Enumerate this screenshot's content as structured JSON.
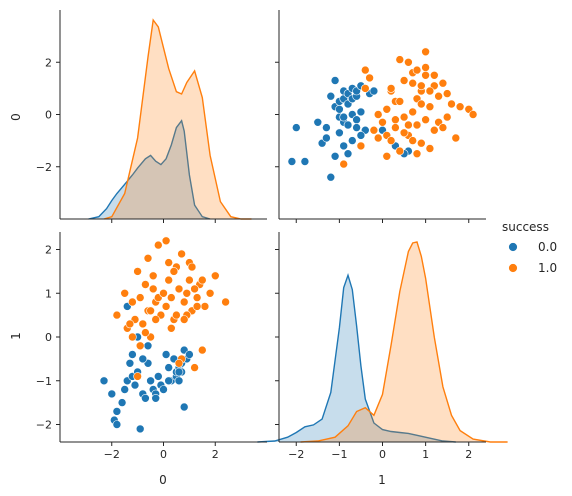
{
  "chart_data": {
    "type": "pairplot",
    "variables": [
      "0",
      "1"
    ],
    "hue": "success",
    "legend": {
      "title": "success",
      "position": "right-center",
      "entries": [
        {
          "label": "0.0",
          "color": "#1f77b4"
        },
        {
          "label": "1.0",
          "color": "#ff7f0e"
        }
      ]
    },
    "axes": {
      "var0": {
        "label": "0",
        "range": [
          -4.0,
          4.0
        ],
        "ticks": [
          -2,
          0,
          2
        ],
        "tick_labels": [
          "−2",
          "0",
          "2"
        ]
      },
      "var1": {
        "label": "1",
        "range": [
          -2.4,
          2.4
        ],
        "ticks": [
          -2,
          -1,
          0,
          1,
          2
        ],
        "tick_labels": [
          "−2",
          "−1",
          "0",
          "1",
          "2"
        ]
      }
    },
    "grid": false,
    "panels": [
      {
        "position": "top-left",
        "type": "kde",
        "variable": "0",
        "series": [
          {
            "name": "0.0",
            "color": "#1f77b4",
            "x": [
              -2.9,
              -2.5,
              -2.2,
              -2.0,
              -1.8,
              -1.5,
              -1.2,
              -1.0,
              -0.7,
              -0.5,
              -0.3,
              -0.1,
              0.1,
              0.3,
              0.5,
              0.7,
              0.8,
              1.0,
              1.2,
              1.5,
              1.8
            ],
            "density": [
              0.0,
              0.02,
              0.09,
              0.16,
              0.22,
              0.3,
              0.38,
              0.44,
              0.52,
              0.55,
              0.5,
              0.47,
              0.52,
              0.64,
              0.79,
              0.85,
              0.76,
              0.38,
              0.12,
              0.02,
              0.0
            ]
          },
          {
            "name": "1.0",
            "color": "#ff7f0e",
            "x": [
              -2.3,
              -2.0,
              -1.5,
              -1.0,
              -0.6,
              -0.4,
              -0.2,
              0.0,
              0.2,
              0.5,
              0.7,
              0.9,
              1.2,
              1.5,
              1.8,
              2.2,
              2.6,
              3.0,
              3.4
            ],
            "density": [
              0.0,
              0.02,
              0.22,
              0.7,
              1.4,
              1.72,
              1.66,
              1.48,
              1.3,
              1.1,
              1.08,
              1.18,
              1.28,
              1.05,
              0.55,
              0.15,
              0.02,
              0.0,
              0.0
            ]
          }
        ]
      },
      {
        "position": "top-right",
        "type": "scatter",
        "x_variable": "1",
        "y_variable": "0",
        "series": [
          {
            "name": "0.0",
            "color": "#1f77b4",
            "x": [
              -2.1,
              -2.0,
              -1.8,
              -1.5,
              -1.4,
              -1.3,
              -1.2,
              -1.1,
              -1.0,
              -0.9,
              -0.9,
              -0.8,
              -0.8,
              -0.7,
              -0.7,
              -0.6,
              -0.6,
              -0.5,
              -1.0,
              -0.9,
              -0.8,
              -0.7,
              -0.9,
              -1.0,
              -0.6,
              -0.5,
              -1.1,
              -1.2,
              -0.7,
              -0.4,
              -0.3,
              -0.2,
              0.3,
              0.6,
              -1.1,
              -1.3,
              -0.8,
              -0.5,
              0.0,
              0.5,
              0.7,
              -1.0,
              -0.6,
              -0.9
            ],
            "y": [
              -1.8,
              -0.5,
              -1.8,
              -0.3,
              -1.1,
              -0.5,
              0.7,
              0.3,
              0.5,
              0.6,
              0.9,
              0.8,
              0.4,
              0.6,
              1.0,
              0.7,
              0.9,
              1.1,
              -0.1,
              -0.3,
              -0.4,
              0.0,
              -1.2,
              -0.7,
              -0.2,
              0.1,
              -1.6,
              -2.4,
              -1.0,
              -0.6,
              0.8,
              0.9,
              -1.2,
              -1.4,
              1.3,
              -0.9,
              -1.5,
              -0.8,
              -0.6,
              -1.5,
              -1.0,
              0.2,
              -0.5,
              -0.1
            ]
          },
          {
            "name": "1.0",
            "color": "#ff7f0e",
            "x": [
              -0.9,
              -0.5,
              -0.4,
              -0.3,
              -0.2,
              -0.1,
              0.0,
              0.1,
              0.1,
              0.2,
              0.3,
              0.3,
              0.4,
              0.5,
              0.5,
              0.6,
              0.7,
              0.7,
              0.8,
              0.8,
              0.9,
              0.9,
              1.0,
              1.0,
              1.1,
              1.2,
              1.3,
              1.4,
              1.5,
              1.6,
              1.7,
              1.8,
              2.0,
              2.1,
              0.4,
              0.6,
              0.8,
              1.0,
              1.2,
              0.2,
              0.5,
              0.7,
              0.9,
              1.1,
              1.3,
              1.5,
              0.3,
              0.6,
              0.9,
              1.2,
              -0.1,
              0.1,
              0.4,
              0.7,
              1.0,
              1.4,
              0.8,
              1.1,
              -0.4,
              0.2
            ],
            "y": [
              -1.9,
              -1.2,
              1.0,
              1.4,
              -0.6,
              0.0,
              -0.3,
              -0.8,
              0.2,
              -1.0,
              -0.5,
              0.5,
              -1.4,
              -0.1,
              1.3,
              -0.8,
              0.1,
              1.6,
              -0.4,
              0.6,
              -1.1,
              0.9,
              -0.2,
              1.8,
              0.3,
              -0.6,
              0.7,
              1.2,
              -0.1,
              0.4,
              -0.9,
              0.3,
              0.2,
              0.0,
              2.1,
              2.0,
              1.7,
              1.5,
              1.1,
              0.9,
              -0.7,
              1.2,
              0.4,
              -1.3,
              -0.3,
              0.8,
              -0.2,
              -0.4,
              1.1,
              1.5,
              -0.9,
              -1.6,
              0.5,
              -1.0,
              2.4,
              -0.5,
              -1.5,
              0.9,
              1.7,
              1.0
            ]
          }
        ]
      },
      {
        "position": "bottom-left",
        "type": "scatter",
        "x_variable": "0",
        "y_variable": "1",
        "series": [
          {
            "name": "0.0",
            "color": "#1f77b4",
            "x": [
              -2.3,
              -2.0,
              -1.9,
              -1.8,
              -1.8,
              -1.6,
              -1.5,
              -1.4,
              -1.3,
              -1.2,
              -1.1,
              -1.0,
              -0.9,
              -0.8,
              -0.7,
              -0.6,
              -0.5,
              -0.4,
              -0.3,
              -0.2,
              -0.1,
              0.0,
              0.1,
              0.2,
              0.3,
              0.4,
              0.5,
              0.5,
              0.6,
              0.6,
              0.7,
              0.7,
              0.8,
              0.8,
              0.9,
              1.0,
              -1.4,
              -1.0,
              -0.6,
              -0.3,
              0.2,
              0.6,
              -0.8,
              -1.2
            ],
            "y": [
              -1.0,
              -1.3,
              -1.9,
              -2.0,
              -1.7,
              -1.5,
              -1.2,
              -1.0,
              -0.6,
              -0.9,
              -1.1,
              -0.8,
              -2.1,
              -1.3,
              -1.4,
              -0.6,
              -1.0,
              -1.2,
              -1.3,
              -0.9,
              -1.1,
              -1.2,
              -0.4,
              -0.7,
              -1.0,
              -0.5,
              -0.9,
              -0.8,
              -0.7,
              -1.0,
              -0.6,
              -0.8,
              -0.3,
              -1.6,
              -0.5,
              -0.4,
              0.7,
              0.0,
              -0.2,
              -1.4,
              -1.0,
              -0.8,
              -0.5,
              -0.4
            ]
          },
          {
            "name": "1.0",
            "color": "#ff7f0e",
            "x": [
              -1.8,
              -1.5,
              -1.4,
              -1.2,
              -1.1,
              -1.0,
              -0.9,
              -0.8,
              -0.7,
              -0.6,
              -0.5,
              -0.4,
              -0.3,
              -0.2,
              -0.1,
              0.0,
              0.1,
              0.2,
              0.3,
              0.4,
              0.5,
              0.6,
              0.7,
              0.8,
              0.9,
              1.0,
              1.1,
              1.2,
              1.3,
              1.4,
              1.5,
              1.6,
              1.8,
              2.0,
              2.4,
              -1.3,
              -0.9,
              -0.5,
              -0.2,
              0.1,
              0.4,
              0.7,
              1.0,
              1.3,
              -1.0,
              -0.6,
              -0.3,
              0.0,
              0.3,
              0.6,
              0.9,
              1.2,
              1.5,
              -0.7,
              -0.4,
              0.2,
              0.5,
              1.1,
              -1.2,
              0.8
            ],
            "y": [
              0.5,
              1.0,
              0.2,
              0.8,
              0.4,
              1.5,
              0.9,
              0.3,
              1.2,
              0.6,
              0.0,
              1.4,
              0.8,
              2.1,
              0.5,
              1.0,
              0.7,
              1.3,
              0.9,
              0.4,
              1.6,
              1.1,
              -0.5,
              0.8,
              1.0,
              1.3,
              0.6,
              -0.7,
              0.9,
              1.2,
              -0.3,
              0.7,
              1.0,
              1.4,
              0.8,
              0.3,
              -0.2,
              0.6,
              0.9,
              2.2,
              1.5,
              1.9,
              1.7,
              0.7,
              -0.9,
              1.8,
              0.4,
              1.0,
              0.2,
              -0.6,
              0.5,
              1.1,
              1.3,
              0.1,
              1.1,
              1.7,
              0.5,
              1.6,
              0.0,
              0.4
            ]
          }
        ]
      },
      {
        "position": "bottom-right",
        "type": "kde",
        "variable": "1",
        "series": [
          {
            "name": "0.0",
            "color": "#1f77b4",
            "x": [
              -2.9,
              -2.5,
              -2.2,
              -2.0,
              -1.8,
              -1.6,
              -1.4,
              -1.2,
              -1.0,
              -0.9,
              -0.8,
              -0.7,
              -0.6,
              -0.5,
              -0.4,
              -0.2,
              0.0,
              0.2,
              0.4,
              0.6,
              0.8,
              1.1,
              1.4,
              1.7
            ],
            "density": [
              0.0,
              0.01,
              0.05,
              0.1,
              0.16,
              0.18,
              0.24,
              0.52,
              1.2,
              1.62,
              1.75,
              1.6,
              1.22,
              0.8,
              0.45,
              0.2,
              0.13,
              0.11,
              0.1,
              0.09,
              0.07,
              0.04,
              0.01,
              0.0
            ]
          },
          {
            "name": "1.0",
            "color": "#ff7f0e",
            "x": [
              -1.9,
              -1.5,
              -1.1,
              -0.8,
              -0.6,
              -0.4,
              -0.2,
              0.0,
              0.2,
              0.4,
              0.6,
              0.7,
              0.8,
              0.9,
              1.0,
              1.2,
              1.4,
              1.6,
              1.8,
              2.1,
              2.5,
              2.9
            ],
            "density": [
              0.0,
              0.01,
              0.05,
              0.17,
              0.32,
              0.36,
              0.28,
              0.5,
              1.02,
              1.58,
              2.0,
              2.09,
              2.1,
              1.95,
              1.72,
              1.1,
              0.58,
              0.28,
              0.12,
              0.03,
              0.0,
              0.0
            ]
          }
        ]
      }
    ]
  }
}
